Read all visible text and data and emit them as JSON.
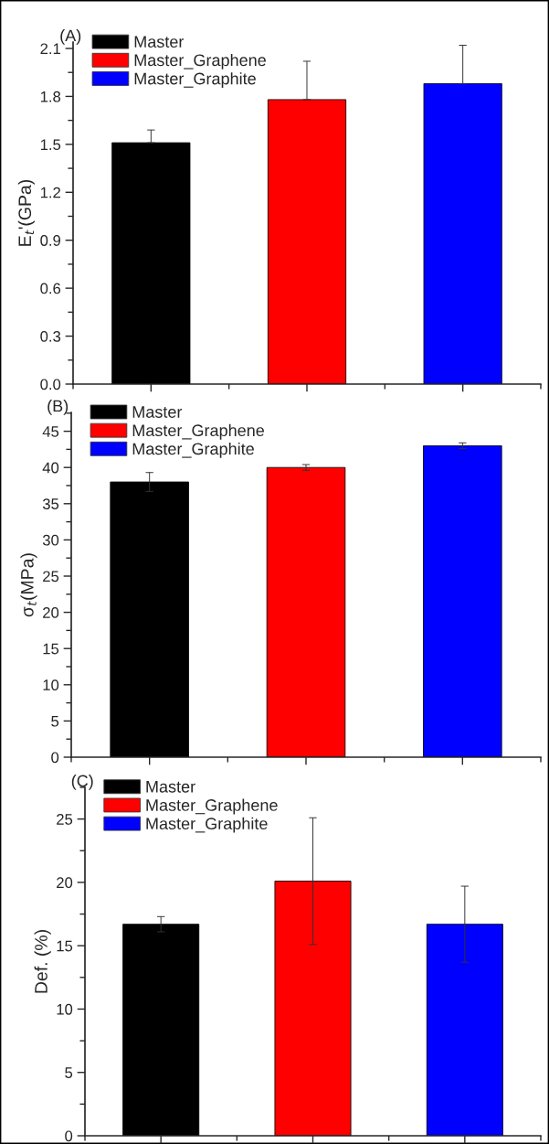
{
  "chart_data": [
    {
      "type": "bar",
      "categories": [
        null,
        null,
        null
      ],
      "ylabel": "E$_{t}$'(GPa)",
      "annotations": [
        "(A)"
      ],
      "ylim": [
        0,
        2.14
      ],
      "yticks": [
        {
          "value": 0,
          "label": "0.0"
        },
        0.3,
        0.6,
        0.9,
        1.2,
        1.5,
        1.8,
        2.1
      ],
      "legend": "top left",
      "tick_labels": "y",
      "series": [
        {
          "name": "Master",
          "color": "#000000",
          "values": [
            1.51,
            null,
            null
          ],
          "errors": [
            [
              1.51,
              1.59
            ],
            null,
            null
          ]
        },
        {
          "name": "Master_Graphene",
          "color": "#ff0000",
          "values": [
            null,
            1.78,
            null
          ],
          "errors": [
            null,
            [
              1.78,
              2.02
            ],
            null
          ]
        },
        {
          "name": "Master_Graphite",
          "color": "#0000ff",
          "values": [
            null,
            null,
            1.88
          ],
          "errors": [
            null,
            null,
            [
              1.88,
              2.12
            ]
          ]
        }
      ]
    },
    {
      "type": "bar",
      "categories": [
        null,
        null,
        null
      ],
      "ylabel": "σ$_{t}$(MPa)",
      "annotations": [
        "(B)"
      ],
      "ylim": [
        0,
        47.6
      ],
      "yticks": [
        0,
        5,
        10,
        15,
        20,
        25,
        30,
        35,
        40,
        45
      ],
      "legend": "top left",
      "tick_labels": "y",
      "series": [
        {
          "name": "Master",
          "color": "#000000",
          "values": [
            38,
            null,
            null
          ],
          "errors": [
            1.3,
            null,
            null
          ]
        },
        {
          "name": "Master_Graphene",
          "color": "#ff0000",
          "values": [
            null,
            40,
            null
          ],
          "errors": [
            null,
            0.4,
            null
          ]
        },
        {
          "name": "Master_Graphite",
          "color": "#0000ff",
          "values": [
            null,
            null,
            43
          ],
          "errors": [
            null,
            null,
            0.4
          ]
        }
      ]
    },
    {
      "type": "bar",
      "categories": [
        null,
        null,
        null
      ],
      "ylabel": "Def. (%)",
      "annotations": [
        "(C)"
      ],
      "ylim": [
        0,
        27.5
      ],
      "yticks": [
        0,
        5,
        10,
        15,
        20,
        25
      ],
      "legend": "top left",
      "tick_labels": "y",
      "series": [
        {
          "name": "Master",
          "color": "#000000",
          "values": [
            16.7,
            null,
            null
          ],
          "errors": [
            0.6,
            null,
            null
          ]
        },
        {
          "name": "Master_Graphene",
          "color": "#ff0000",
          "values": [
            null,
            20.1,
            null
          ],
          "errors": [
            null,
            5,
            null
          ]
        },
        {
          "name": "Master_Graphite",
          "color": "#0000ff",
          "values": [
            null,
            null,
            16.7
          ],
          "errors": [
            null,
            null,
            3
          ]
        }
      ]
    }
  ]
}
